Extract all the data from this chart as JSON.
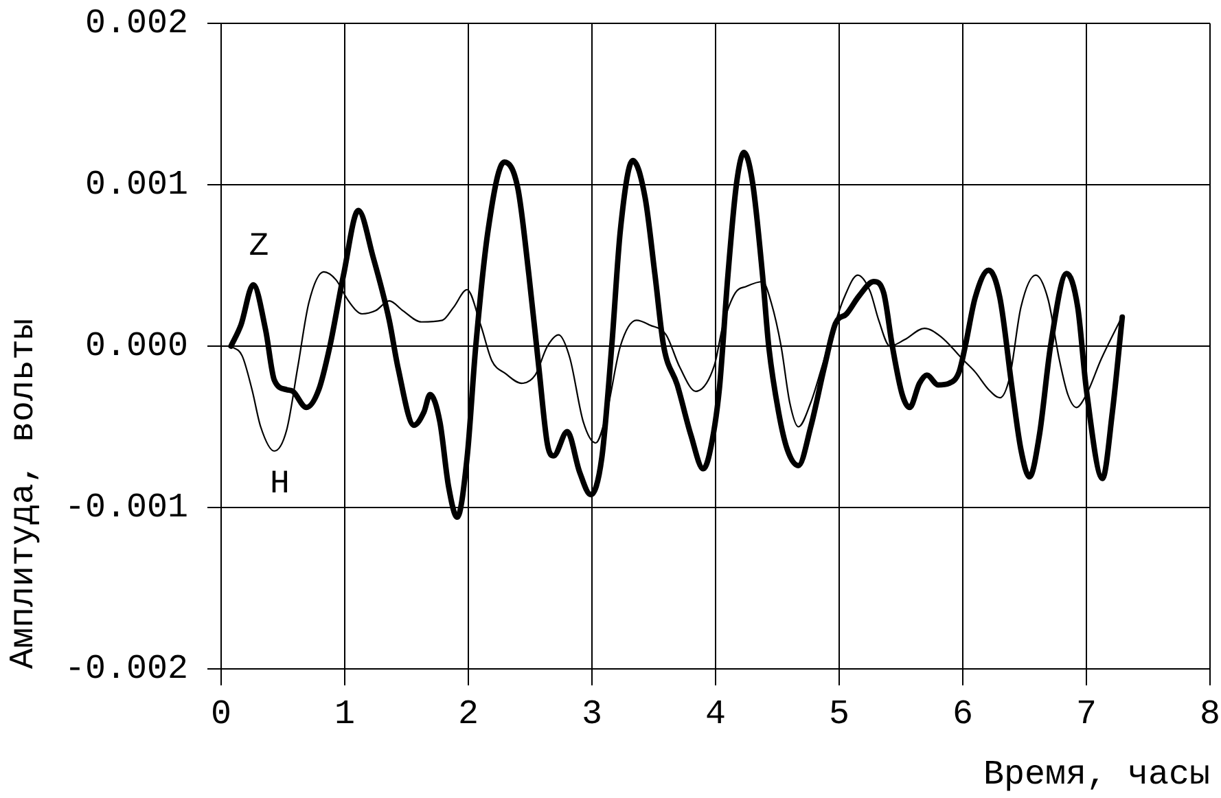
{
  "chart_data": {
    "type": "line",
    "xlabel": "Время, часы",
    "ylabel": "Амплитуда, вольты",
    "xlim": [
      0,
      8
    ],
    "xticks": [
      0,
      1,
      2,
      3,
      4,
      5,
      6,
      7,
      8
    ],
    "ylim": [
      -0.002,
      0.002
    ],
    "yticks": [
      -0.002,
      -0.001,
      {
        "value": 0,
        "label": "0.000"
      },
      0.001,
      0.002
    ],
    "grid": true,
    "legend": false,
    "marker": "none",
    "line_style": "solid",
    "series": [
      {
        "name": "Z",
        "color": "#000000",
        "x": [
          0.08,
          0.16,
          0.26,
          0.36,
          0.43,
          0.53,
          0.58,
          0.69,
          0.79,
          0.88,
          0.99,
          1.11,
          1.23,
          1.36,
          1.43,
          1.56,
          1.64,
          1.69,
          1.77,
          1.84,
          1.91,
          1.99,
          2.06,
          2.16,
          2.29,
          2.4,
          2.49,
          2.57,
          2.64,
          2.69,
          2.8,
          2.9,
          2.99,
          3.08,
          3.16,
          3.23,
          3.33,
          3.43,
          3.51,
          3.58,
          3.69,
          3.8,
          3.9,
          3.95,
          4.03,
          4.1,
          4.17,
          4.23,
          4.3,
          4.38,
          4.43,
          4.51,
          4.58,
          4.67,
          4.77,
          4.88,
          4.97,
          5.06,
          5.16,
          5.28,
          5.36,
          5.43,
          5.51,
          5.57,
          5.65,
          5.71,
          5.8,
          5.89,
          5.97,
          6.02,
          6.1,
          6.21,
          6.3,
          6.4,
          6.47,
          6.54,
          6.62,
          6.71,
          6.84,
          6.93,
          7.0,
          7.13,
          7.21,
          7.29
        ],
        "values": [
          0,
          0.00013,
          0.00038,
          0.0001,
          -0.00021,
          -0.00027,
          -0.00028,
          -0.00038,
          -0.00027,
          0,
          0.00044,
          0.00084,
          0.00055,
          0.00016,
          -0.00013,
          -0.00049,
          -0.00041,
          -0.0003,
          -0.00047,
          -0.00087,
          -0.00106,
          -0.00069,
          0,
          0.00072,
          0.00114,
          0.00098,
          0.00044,
          -0.00013,
          -0.00061,
          -0.00068,
          -0.00053,
          -0.00078,
          -0.00092,
          -0.00069,
          0,
          0.00072,
          0.00115,
          0.00092,
          0.00044,
          0,
          -0.00024,
          -0.00055,
          -0.00076,
          -0.00067,
          -0.00027,
          0.00044,
          0.00101,
          0.0012,
          0.00101,
          0.00044,
          0,
          -0.00041,
          -0.00064,
          -0.00074,
          -0.0005,
          -0.00013,
          0.00014,
          0.0002,
          0.00031,
          0.0004,
          0.00033,
          0,
          -0.0003,
          -0.00038,
          -0.00023,
          -0.00018,
          -0.00024,
          -0.00023,
          -0.00016,
          0,
          0.0003,
          0.00047,
          0.0003,
          -0.00027,
          -0.00064,
          -0.00081,
          -0.00055,
          0,
          0.00045,
          0.00024,
          -0.00027,
          -0.00082,
          -0.00041,
          0.00018
        ]
      },
      {
        "name": "H",
        "color": "#000000",
        "x": [
          0.08,
          0.17,
          0.25,
          0.32,
          0.43,
          0.53,
          0.62,
          0.71,
          0.83,
          0.93,
          1.03,
          1.14,
          1.25,
          1.36,
          1.47,
          1.62,
          1.79,
          1.88,
          1.99,
          2.1,
          2.19,
          2.3,
          2.43,
          2.54,
          2.64,
          2.73,
          2.82,
          2.93,
          3.03,
          3.12,
          3.23,
          3.36,
          3.47,
          3.6,
          3.71,
          3.84,
          3.99,
          4.06,
          4.16,
          4.25,
          4.38,
          4.45,
          4.53,
          4.6,
          4.67,
          4.77,
          4.86,
          4.95,
          5.04,
          5.15,
          5.25,
          5.32,
          5.41,
          5.53,
          5.69,
          5.82,
          6.01,
          6.1,
          6.21,
          6.3,
          6.38,
          6.47,
          6.59,
          6.69,
          6.78,
          6.85,
          6.92,
          7.0,
          7.12,
          7.28
        ],
        "values": [
          0,
          -6e-05,
          -0.00027,
          -0.0005,
          -0.00065,
          -0.00052,
          -0.00013,
          0.00027,
          0.00046,
          0.00041,
          0.00028,
          0.0002,
          0.00022,
          0.00028,
          0.00022,
          0.00015,
          0.00016,
          0.00024,
          0.00035,
          0.00013,
          -9e-05,
          -0.00017,
          -0.00023,
          -0.00018,
          0,
          7e-05,
          -7e-05,
          -0.00047,
          -0.0006,
          -0.00041,
          0,
          0.00016,
          0.00013,
          7e-05,
          -0.00013,
          -0.00028,
          -0.00012,
          0.00013,
          0.00033,
          0.00037,
          0.0004,
          0.00027,
          0,
          -0.00035,
          -0.0005,
          -0.00035,
          -0.00013,
          0.0001,
          0.0003,
          0.00044,
          0.00034,
          0.00016,
          0,
          4e-05,
          0.00011,
          6e-05,
          -9e-05,
          -0.00016,
          -0.00027,
          -0.00032,
          -0.00019,
          0.00024,
          0.00044,
          0.00029,
          -8e-05,
          -0.0003,
          -0.00038,
          -0.0003,
          -8e-05,
          0.00017
        ]
      }
    ]
  }
}
